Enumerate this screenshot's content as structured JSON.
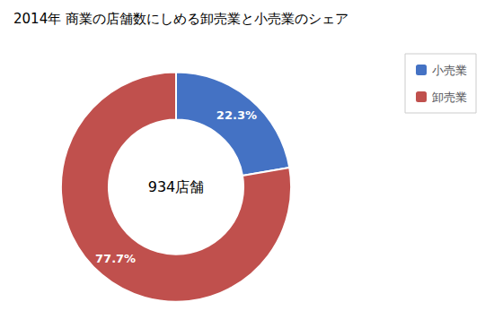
{
  "chart_data": {
    "type": "pie",
    "title": "2014年 商業の店舗数にしめる卸売業と小売業のシェア",
    "categories": [
      "小売業",
      "卸売業"
    ],
    "values": [
      22.3,
      77.7
    ],
    "value_labels": [
      "22.3%",
      "77.7%"
    ],
    "colors": [
      "#4472C4",
      "#C0504D"
    ],
    "data_labels": true,
    "legend": "upper right",
    "annotations": [
      "934店舗"
    ]
  }
}
